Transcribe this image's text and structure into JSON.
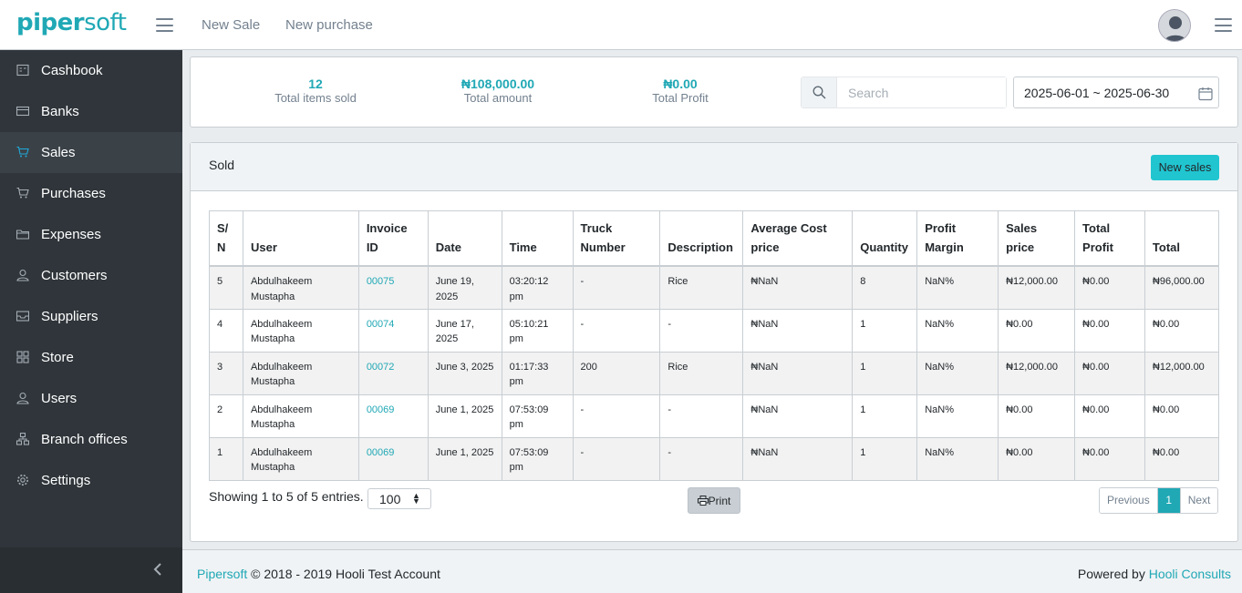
{
  "brand": {
    "part1": "piper",
    "part2": "soft"
  },
  "topnav": {
    "new_sale": "New Sale",
    "new_purchase": "New purchase"
  },
  "sidebar": {
    "items": [
      {
        "label": "Cashbook",
        "icon": "cashbook-icon"
      },
      {
        "label": "Banks",
        "icon": "bank-card-icon"
      },
      {
        "label": "Sales",
        "icon": "cart-icon"
      },
      {
        "label": "Purchases",
        "icon": "cart-icon"
      },
      {
        "label": "Expenses",
        "icon": "folder-icon"
      },
      {
        "label": "Customers",
        "icon": "user-icon"
      },
      {
        "label": "Suppliers",
        "icon": "inbox-icon"
      },
      {
        "label": "Store",
        "icon": "grid-icon"
      },
      {
        "label": "Users",
        "icon": "user-icon"
      },
      {
        "label": "Branch offices",
        "icon": "branch-icon"
      },
      {
        "label": "Settings",
        "icon": "gear-icon"
      }
    ],
    "active": "Sales"
  },
  "summary": {
    "items_sold": {
      "value": "12",
      "label": "Total items sold"
    },
    "amount": {
      "value": "₦108,000.00",
      "label": "Total amount"
    },
    "profit": {
      "value": "₦0.00",
      "label": "Total Profit"
    },
    "search_placeholder": "Search",
    "date_range": "2025-06-01 ~ 2025-06-30"
  },
  "card": {
    "title": "Sold",
    "new_button": "New sales"
  },
  "table": {
    "headers": [
      [
        "S/",
        "N"
      ],
      [
        "User"
      ],
      [
        "Invoice",
        "ID"
      ],
      [
        "Date"
      ],
      [
        "Time"
      ],
      [
        "Truck",
        "Number"
      ],
      [
        "Description"
      ],
      [
        "Average Cost",
        "price"
      ],
      [
        "Quantity"
      ],
      [
        "Profit",
        "Margin"
      ],
      [
        "Sales",
        "price"
      ],
      [
        "Total",
        "Profit"
      ],
      [
        "Total"
      ]
    ],
    "rows": [
      [
        "5",
        "Abdulhakeem Mustapha",
        "00075",
        "June 19, 2025",
        "03:20:12 pm",
        "-",
        "Rice",
        "₦NaN",
        "8",
        "NaN%",
        "₦12,000.00",
        "₦0.00",
        "₦96,000.00"
      ],
      [
        "4",
        "Abdulhakeem Mustapha",
        "00074",
        "June 17, 2025",
        "05:10:21 pm",
        "-",
        "-",
        "₦NaN",
        "1",
        "NaN%",
        "₦0.00",
        "₦0.00",
        "₦0.00"
      ],
      [
        "3",
        "Abdulhakeem Mustapha",
        "00072",
        "June 3, 2025",
        "01:17:33 pm",
        "200",
        "Rice",
        "₦NaN",
        "1",
        "NaN%",
        "₦12,000.00",
        "₦0.00",
        "₦12,000.00"
      ],
      [
        "2",
        "Abdulhakeem Mustapha",
        "00069",
        "June 1, 2025",
        "07:53:09 pm",
        "-",
        "-",
        "₦NaN",
        "1",
        "NaN%",
        "₦0.00",
        "₦0.00",
        "₦0.00"
      ],
      [
        "1",
        "Abdulhakeem Mustapha",
        "00069",
        "June 1, 2025",
        "07:53:09 pm",
        "-",
        "-",
        "₦NaN",
        "1",
        "NaN%",
        "₦0.00",
        "₦0.00",
        "₦0.00"
      ]
    ]
  },
  "table_footer": {
    "showing": "Showing 1 to 5 of 5 entries.",
    "page_size": "100",
    "print": "Print",
    "previous": "Previous",
    "current_page": "1",
    "next": "Next"
  },
  "footer": {
    "brand": "Pipersoft",
    "copyright": "© 2018 - 2019 Hooli Test Account",
    "powered_by": "Powered by",
    "company": "Hooli Consults"
  }
}
